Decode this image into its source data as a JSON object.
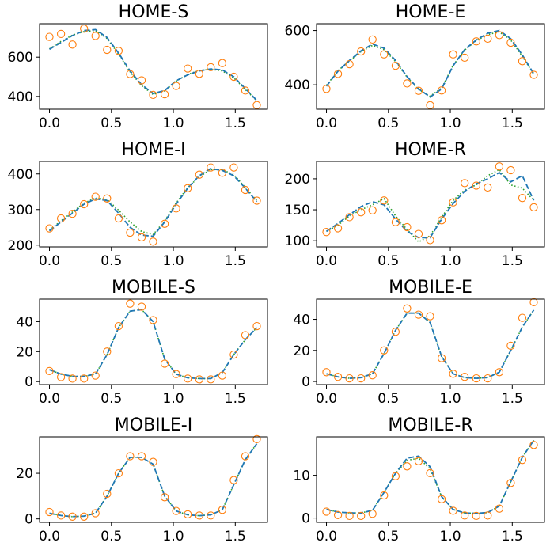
{
  "chart_data": [
    {
      "type": "line",
      "title": "HOME-S",
      "xlabel": "",
      "ylabel": "",
      "xlim": [
        -0.08,
        1.76
      ],
      "ylim": [
        335,
        770
      ],
      "xticks": [
        0.0,
        0.5,
        1.0,
        1.5
      ],
      "xtick_labels": [
        "0.0",
        "0.5",
        "1.0",
        "1.5"
      ],
      "yticks": [
        400,
        600
      ],
      "ytick_labels": [
        "400",
        "600"
      ],
      "x": [
        0.0,
        0.093,
        0.186,
        0.279,
        0.372,
        0.465,
        0.558,
        0.651,
        0.744,
        0.837,
        0.93,
        1.023,
        1.116,
        1.209,
        1.302,
        1.395,
        1.488,
        1.581,
        1.674
      ],
      "observed": [
        703,
        718,
        664,
        745,
        708,
        637,
        632,
        514,
        482,
        408,
        411,
        454,
        542,
        515,
        549,
        570,
        500,
        430,
        356
      ],
      "fit_dashed": [
        640,
        675,
        710,
        735,
        740,
        700,
        620,
        530,
        460,
        415,
        430,
        480,
        510,
        530,
        540,
        535,
        500,
        440,
        380
      ],
      "fit_dotted": [
        642,
        680,
        712,
        730,
        735,
        695,
        615,
        525,
        455,
        410,
        428,
        478,
        512,
        532,
        538,
        530,
        495,
        435,
        378
      ]
    },
    {
      "type": "line",
      "title": "HOME-E",
      "xlabel": "",
      "ylabel": "",
      "xlim": [
        -0.08,
        1.76
      ],
      "ylim": [
        310,
        625
      ],
      "xticks": [
        0.0,
        0.5,
        1.0,
        1.5
      ],
      "xtick_labels": [
        "0.0",
        "0.5",
        "1.0",
        "1.5"
      ],
      "yticks": [
        400,
        600
      ],
      "ytick_labels": [
        "400",
        "600"
      ],
      "x": [
        0.0,
        0.093,
        0.186,
        0.279,
        0.372,
        0.465,
        0.558,
        0.651,
        0.744,
        0.837,
        0.93,
        1.023,
        1.116,
        1.209,
        1.302,
        1.395,
        1.488,
        1.581,
        1.674
      ],
      "observed": [
        385,
        440,
        476,
        523,
        567,
        512,
        470,
        405,
        378,
        325,
        379,
        512,
        500,
        560,
        570,
        583,
        555,
        487,
        437
      ],
      "fit_dashed": [
        395,
        450,
        490,
        525,
        550,
        535,
        490,
        430,
        385,
        355,
        385,
        470,
        530,
        565,
        590,
        600,
        570,
        510,
        440
      ],
      "fit_dotted": [
        398,
        452,
        488,
        522,
        545,
        530,
        485,
        428,
        382,
        358,
        388,
        472,
        528,
        562,
        585,
        595,
        565,
        505,
        438
      ]
    },
    {
      "type": "line",
      "title": "HOME-I",
      "xlabel": "",
      "ylabel": "",
      "xlim": [
        -0.08,
        1.76
      ],
      "ylim": [
        195,
        435
      ],
      "xticks": [
        0.0,
        0.5,
        1.0,
        1.5
      ],
      "xtick_labels": [
        "0.0",
        "0.5",
        "1.0",
        "1.5"
      ],
      "yticks": [
        200,
        300,
        400
      ],
      "ytick_labels": [
        "200",
        "300",
        "400"
      ],
      "x": [
        0.0,
        0.093,
        0.186,
        0.279,
        0.372,
        0.465,
        0.558,
        0.651,
        0.744,
        0.837,
        0.93,
        1.023,
        1.116,
        1.209,
        1.302,
        1.395,
        1.488,
        1.581,
        1.674
      ],
      "observed": [
        247,
        275,
        288,
        315,
        336,
        331,
        275,
        235,
        222,
        210,
        260,
        303,
        360,
        398,
        418,
        403,
        418,
        355,
        325
      ],
      "fit_dashed": [
        240,
        265,
        290,
        315,
        330,
        325,
        290,
        250,
        228,
        225,
        265,
        315,
        360,
        395,
        415,
        410,
        395,
        360,
        322
      ],
      "fit_dotted": [
        242,
        268,
        293,
        318,
        332,
        328,
        298,
        265,
        238,
        230,
        268,
        318,
        362,
        392,
        412,
        412,
        398,
        362,
        325
      ]
    },
    {
      "type": "line",
      "title": "HOME-R",
      "xlabel": "",
      "ylabel": "",
      "xlim": [
        -0.08,
        1.76
      ],
      "ylim": [
        90,
        228
      ],
      "xticks": [
        0.0,
        0.5,
        1.0,
        1.5
      ],
      "xtick_labels": [
        "0.0",
        "0.5",
        "1.0",
        "1.5"
      ],
      "yticks": [
        100,
        150,
        200
      ],
      "ytick_labels": [
        "100",
        "150",
        "200"
      ],
      "x": [
        0.0,
        0.093,
        0.186,
        0.279,
        0.372,
        0.465,
        0.558,
        0.651,
        0.744,
        0.837,
        0.93,
        1.023,
        1.116,
        1.209,
        1.302,
        1.395,
        1.488,
        1.581,
        1.674
      ],
      "observed": [
        114,
        120,
        138,
        146,
        149,
        165,
        130,
        122,
        111,
        101,
        133,
        162,
        193,
        189,
        186,
        220,
        214,
        169,
        154
      ],
      "fit_dashed": [
        115,
        128,
        142,
        155,
        163,
        158,
        135,
        115,
        105,
        105,
        135,
        160,
        180,
        192,
        200,
        210,
        195,
        205,
        165
      ],
      "fit_dotted": [
        115,
        125,
        140,
        150,
        158,
        168,
        140,
        118,
        98,
        108,
        138,
        165,
        182,
        190,
        205,
        215,
        190,
        185,
        165
      ]
    },
    {
      "type": "line",
      "title": "MOBILE-S",
      "xlabel": "",
      "ylabel": "",
      "xlim": [
        -0.08,
        1.76
      ],
      "ylim": [
        -2,
        55
      ],
      "xticks": [
        0.0,
        0.5,
        1.0,
        1.5
      ],
      "xtick_labels": [
        "0.0",
        "0.5",
        "1.0",
        "1.5"
      ],
      "yticks": [
        0,
        20,
        40
      ],
      "ytick_labels": [
        "0",
        "20",
        "40"
      ],
      "x": [
        0.0,
        0.093,
        0.186,
        0.279,
        0.372,
        0.465,
        0.558,
        0.651,
        0.744,
        0.837,
        0.93,
        1.023,
        1.116,
        1.209,
        1.302,
        1.395,
        1.488,
        1.581,
        1.674
      ],
      "observed": [
        7,
        3,
        2,
        2,
        4,
        20,
        37,
        52,
        50,
        41,
        12,
        5,
        2,
        1.5,
        1.5,
        4,
        18,
        31,
        37
      ],
      "fit_dashed": [
        8,
        5,
        3.5,
        3.5,
        5,
        18,
        36,
        47,
        48,
        40,
        15,
        5,
        2.5,
        2,
        2,
        6,
        18,
        28,
        36
      ],
      "fit_dotted": [
        8,
        5,
        3.5,
        3.5,
        5,
        18,
        36,
        47,
        48,
        40,
        15,
        5,
        2.5,
        2,
        2,
        6,
        18,
        28,
        36
      ]
    },
    {
      "type": "line",
      "title": "MOBILE-E",
      "xlabel": "",
      "ylabel": "",
      "xlim": [
        -0.08,
        1.76
      ],
      "ylim": [
        -2,
        53
      ],
      "xticks": [
        0.0,
        0.5,
        1.0,
        1.5
      ],
      "xtick_labels": [
        "0.0",
        "0.5",
        "1.0",
        "1.5"
      ],
      "yticks": [
        0,
        20,
        40
      ],
      "ytick_labels": [
        "0",
        "20",
        "40"
      ],
      "x": [
        0.0,
        0.093,
        0.186,
        0.279,
        0.372,
        0.465,
        0.558,
        0.651,
        0.744,
        0.837,
        0.93,
        1.023,
        1.116,
        1.209,
        1.302,
        1.395,
        1.488,
        1.581,
        1.674
      ],
      "observed": [
        6,
        3,
        2,
        2,
        4,
        20,
        32,
        47,
        43,
        42,
        15,
        5,
        3,
        2,
        2,
        6,
        23,
        41,
        51
      ],
      "fit_dashed": [
        5,
        3,
        2,
        2.5,
        5,
        18,
        33,
        44,
        44,
        38,
        16,
        5,
        2.5,
        2,
        2.5,
        6,
        20,
        35,
        46
      ],
      "fit_dotted": [
        5,
        3,
        2,
        2.5,
        5,
        18,
        33,
        44,
        44,
        38,
        16,
        5,
        2.5,
        2,
        2.5,
        6,
        20,
        35,
        46
      ]
    },
    {
      "type": "line",
      "title": "MOBILE-I",
      "xlabel": "",
      "ylabel": "",
      "xlim": [
        -0.08,
        1.76
      ],
      "ylim": [
        -1.5,
        36
      ],
      "xticks": [
        0.0,
        0.5,
        1.0,
        1.5
      ],
      "xtick_labels": [
        "0.0",
        "0.5",
        "1.0",
        "1.5"
      ],
      "yticks": [
        0,
        20
      ],
      "ytick_labels": [
        "0",
        "20"
      ],
      "x": [
        0.0,
        0.093,
        0.186,
        0.279,
        0.372,
        0.465,
        0.558,
        0.651,
        0.744,
        0.837,
        0.93,
        1.023,
        1.116,
        1.209,
        1.302,
        1.395,
        1.488,
        1.581,
        1.674
      ],
      "observed": [
        3,
        1.5,
        1,
        1,
        2.5,
        11,
        20,
        27.5,
        27.5,
        25,
        9.5,
        3.5,
        2,
        1.5,
        1.5,
        4,
        17,
        27.5,
        35
      ],
      "fit_dashed": [
        2.5,
        1.5,
        1,
        1.2,
        2.5,
        10,
        20,
        27,
        27,
        24,
        10,
        3.5,
        1.8,
        1.4,
        1.8,
        4,
        15,
        26,
        33
      ],
      "fit_dotted": [
        2.5,
        1.5,
        1,
        1.2,
        2.5,
        10,
        20,
        27,
        27,
        24,
        10,
        3.5,
        1.8,
        1.4,
        1.8,
        4,
        15,
        26,
        33
      ]
    },
    {
      "type": "line",
      "title": "MOBILE-R",
      "xlabel": "",
      "ylabel": "",
      "xlim": [
        -0.08,
        1.76
      ],
      "ylim": [
        -1,
        19
      ],
      "xticks": [
        0.0,
        0.5,
        1.0,
        1.5
      ],
      "xtick_labels": [
        "0.0",
        "0.5",
        "1.0",
        "1.5"
      ],
      "yticks": [
        0,
        10
      ],
      "ytick_labels": [
        "0",
        "10"
      ],
      "x": [
        0.0,
        0.093,
        0.186,
        0.279,
        0.372,
        0.465,
        0.558,
        0.651,
        0.744,
        0.837,
        0.93,
        1.023,
        1.116,
        1.209,
        1.302,
        1.395,
        1.488,
        1.581,
        1.674
      ],
      "observed": [
        1.5,
        0.7,
        0.5,
        0.5,
        1,
        5.3,
        9.8,
        12.1,
        13.3,
        10.5,
        4.4,
        1.7,
        0.6,
        0.5,
        0.6,
        2.2,
        8.2,
        13.6,
        17.1
      ],
      "fit_dashed": [
        2,
        1.4,
        1.2,
        1.2,
        1.8,
        6,
        10.5,
        14,
        14.5,
        12,
        5,
        2,
        1.2,
        1.1,
        1.3,
        2.8,
        8.5,
        14.2,
        18.2
      ],
      "fit_dotted": [
        2,
        1.4,
        1.2,
        1.2,
        1.8,
        6,
        10.5,
        13.5,
        14,
        11.5,
        5,
        2,
        1.2,
        1.1,
        1.3,
        2.8,
        8.5,
        14.2,
        18.2
      ]
    }
  ],
  "style": {
    "observed_marker_color": "#ff7f0e",
    "dashed_line_color": "#1f77b4",
    "dotted_line_color": "#2ca02c"
  }
}
